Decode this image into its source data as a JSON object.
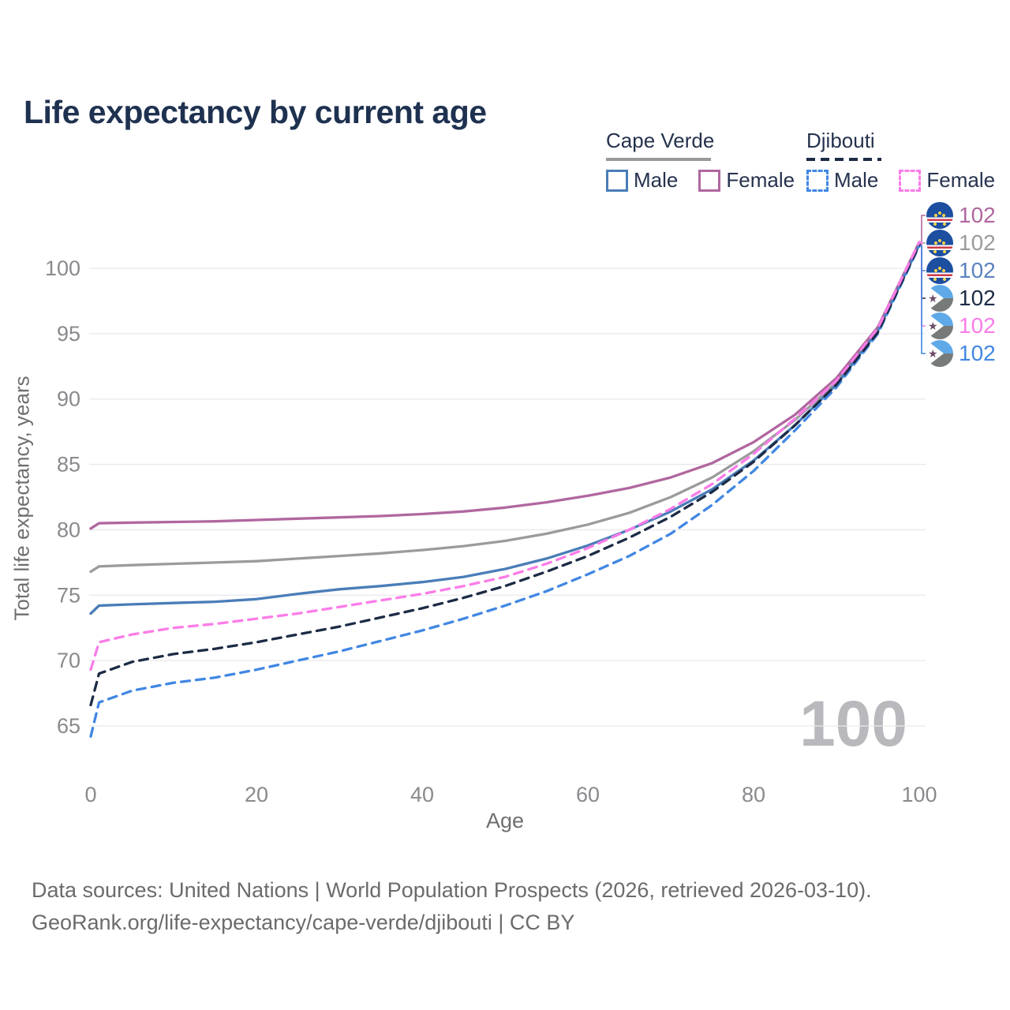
{
  "title": "Life expectancy by current age",
  "watermark": "100",
  "colors": {
    "title_text": "#1e3150",
    "legend_text": "#25324e",
    "tick_text": "#8a8a8e",
    "axis_title_text": "#6f6f6f",
    "footer_text": "#6b6b6b",
    "watermark_text": "#b9b9bd",
    "gridline": "#e9e9ec"
  },
  "legend": {
    "groups": [
      {
        "name": "Cape Verde",
        "line_style": "solid",
        "underline_color": "#9a9a9a",
        "items": [
          {
            "label": "Male",
            "color": "#4a7db8",
            "dashed": false
          },
          {
            "label": "Female",
            "color": "#b0679f",
            "dashed": false
          }
        ]
      },
      {
        "name": "Djibouti",
        "line_style": "dashed",
        "underline_color": "#1c2b45",
        "items": [
          {
            "label": "Male",
            "color": "#4187e3",
            "dashed": true
          },
          {
            "label": "Female",
            "color": "#fb7ce8",
            "dashed": true
          }
        ]
      }
    ]
  },
  "chart_data": {
    "type": "line",
    "title": "Life expectancy by current age",
    "xlabel": "Age",
    "ylabel": "Total life expectancy, years",
    "xlim": [
      0,
      100
    ],
    "ylim": [
      63,
      103
    ],
    "xticks": [
      0,
      20,
      40,
      60,
      80,
      100
    ],
    "yticks": [
      65,
      70,
      75,
      80,
      85,
      90,
      95,
      100
    ],
    "grid": "horizontal-only",
    "legend_position": "top-right",
    "x": [
      0,
      1,
      5,
      10,
      15,
      20,
      25,
      30,
      35,
      40,
      45,
      50,
      55,
      60,
      65,
      70,
      75,
      80,
      85,
      90,
      95,
      100
    ],
    "series": [
      {
        "name": "Cape Verde Female",
        "country": "Cape Verde",
        "sex": "Female",
        "color": "#b0679f",
        "dashed": false,
        "end_label": "102",
        "values": [
          80.1,
          80.5,
          80.55,
          80.6,
          80.65,
          80.75,
          80.85,
          80.95,
          81.05,
          81.2,
          81.4,
          81.7,
          82.1,
          82.6,
          83.2,
          84.0,
          85.1,
          86.7,
          88.8,
          91.6,
          95.5,
          102
        ]
      },
      {
        "name": "Cape Verde Both sexes",
        "country": "Cape Verde",
        "sex": "Both",
        "color": "#9b9b9b",
        "dashed": false,
        "end_label": "102",
        "values": [
          76.8,
          77.2,
          77.3,
          77.4,
          77.5,
          77.6,
          77.8,
          78.0,
          78.2,
          78.45,
          78.75,
          79.15,
          79.7,
          80.4,
          81.3,
          82.5,
          84.0,
          86.0,
          88.4,
          91.3,
          95.3,
          101.9
        ]
      },
      {
        "name": "Cape Verde Male",
        "country": "Cape Verde",
        "sex": "Male",
        "color": "#4a7db8",
        "dashed": false,
        "end_label": "102",
        "values": [
          73.6,
          74.2,
          74.3,
          74.4,
          74.5,
          74.7,
          75.1,
          75.45,
          75.7,
          76.0,
          76.4,
          77.0,
          77.8,
          78.8,
          80.0,
          81.4,
          83.1,
          85.3,
          88.0,
          91.1,
          95.2,
          101.8
        ]
      },
      {
        "name": "Djibouti Both sexes",
        "country": "Djibouti",
        "sex": "Both",
        "color": "#1c2b45",
        "dashed": true,
        "end_label": "102",
        "values": [
          66.6,
          69.0,
          69.9,
          70.5,
          70.9,
          71.4,
          72.0,
          72.6,
          73.3,
          74.0,
          74.8,
          75.7,
          76.8,
          78.0,
          79.4,
          81.0,
          82.9,
          85.2,
          88.0,
          91.1,
          95.1,
          101.8
        ]
      },
      {
        "name": "Djibouti Female",
        "country": "Djibouti",
        "sex": "Female",
        "color": "#fb7ce8",
        "dashed": true,
        "end_label": "102",
        "values": [
          69.3,
          71.4,
          72.0,
          72.5,
          72.8,
          73.2,
          73.6,
          74.1,
          74.6,
          75.1,
          75.7,
          76.4,
          77.4,
          78.6,
          80.0,
          81.6,
          83.5,
          85.8,
          88.5,
          91.4,
          95.4,
          102
        ]
      },
      {
        "name": "Djibouti Male",
        "country": "Djibouti",
        "sex": "Male",
        "color": "#4187e3",
        "dashed": true,
        "end_label": "102",
        "values": [
          64.2,
          66.8,
          67.7,
          68.3,
          68.7,
          69.3,
          70.0,
          70.7,
          71.5,
          72.3,
          73.2,
          74.2,
          75.3,
          76.6,
          78.0,
          79.7,
          81.9,
          84.5,
          87.6,
          90.9,
          95.0,
          101.7
        ]
      }
    ]
  },
  "end_labels": [
    {
      "flag": "cape-verde",
      "value": "102",
      "color": "#b0679f"
    },
    {
      "flag": "cape-verde",
      "value": "102",
      "color": "#9b9b9b"
    },
    {
      "flag": "cape-verde",
      "value": "102",
      "color": "#5b82c0"
    },
    {
      "flag": "djibouti",
      "value": "102",
      "color": "#1c2b45"
    },
    {
      "flag": "djibouti",
      "value": "102",
      "color": "#fb7ce8"
    },
    {
      "flag": "djibouti",
      "value": "102",
      "color": "#4187e3"
    }
  ],
  "footer": {
    "line1": "Data sources: United Nations | World Population Prospects (2026, retrieved 2026-03-10).",
    "line2": "GeoRank.org/life-expectancy/cape-verde/djibouti | CC BY"
  }
}
